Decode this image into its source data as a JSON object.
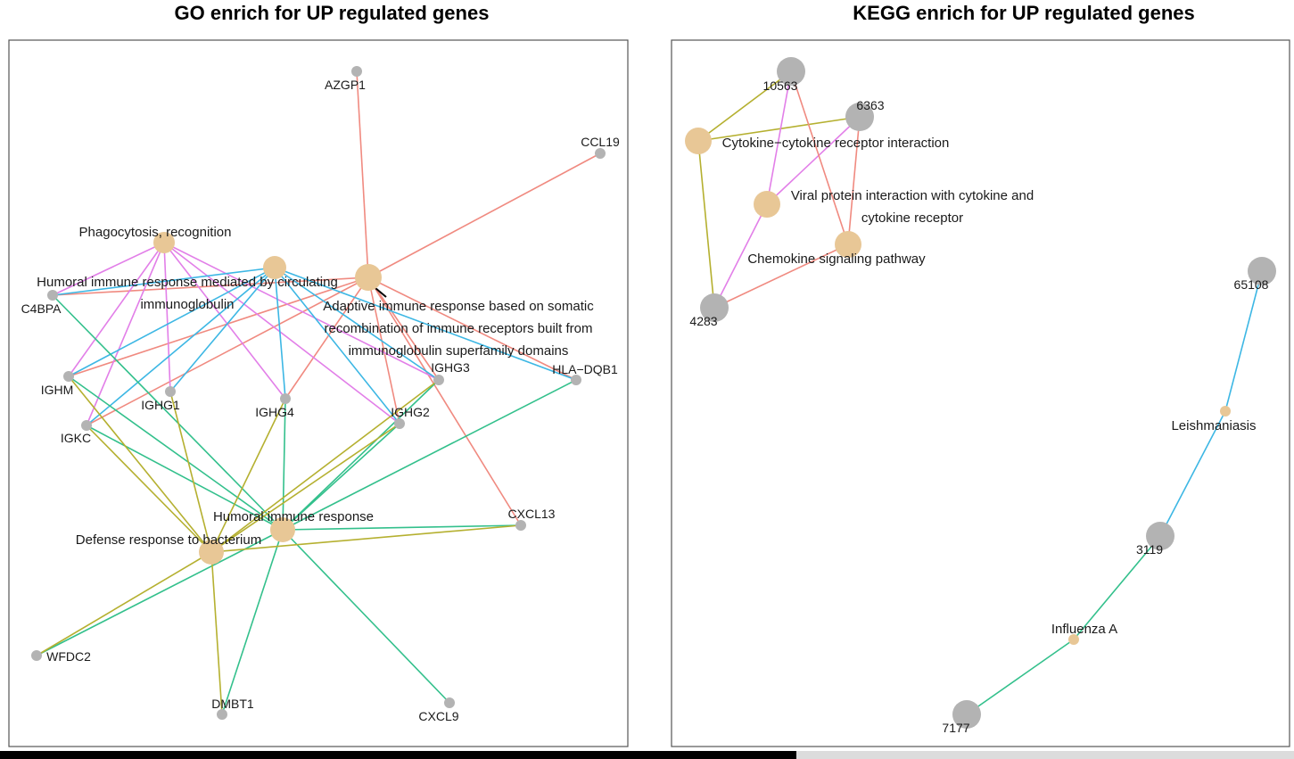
{
  "colors": {
    "term": "#e8c796",
    "gene": "#b3b3b3",
    "frame": "#555555"
  },
  "panels": [
    {
      "id": "go",
      "title": "GO enrich for UP regulated genes",
      "terms": [
        {
          "id": "phago",
          "lines": [
            "Phagocytosis, recognition"
          ]
        },
        {
          "id": "humcirc",
          "lines": [
            "Humoral immune response mediated by circulating",
            "immunoglobulin"
          ]
        },
        {
          "id": "adaptive",
          "lines": [
            "Adaptive immune response based on somatic",
            "recombination of immune receptors built from",
            "immunoglobulin superfamily domains"
          ]
        },
        {
          "id": "humoral",
          "lines": [
            "Humoral immune response"
          ]
        },
        {
          "id": "defense",
          "lines": [
            "Defense response to bacterium"
          ]
        }
      ],
      "genes": [
        "AZGP1",
        "CCL19",
        "C4BPA",
        "IGHG3",
        "HLA−DQB1",
        "IGHM",
        "IGHG1",
        "IGHG4",
        "IGHG2",
        "IGKC",
        "CXCL13",
        "WFDC2",
        "DMBT1",
        "CXCL9"
      ],
      "edges": [
        {
          "term": "adaptive",
          "color": "#f08a80",
          "genes": [
            "AZGP1",
            "CCL19",
            "C4BPA",
            "IGHG3",
            "HLA−DQB1",
            "IGHM",
            "IGHG4",
            "IGHG2",
            "IGKC",
            "CXCL13"
          ]
        },
        {
          "term": "phago",
          "color": "#e27fe8",
          "genes": [
            "C4BPA",
            "IGHM",
            "IGHG1",
            "IGHG4",
            "IGHG2",
            "IGHG3",
            "IGKC"
          ]
        },
        {
          "term": "humcirc",
          "color": "#3db7e4",
          "genes": [
            "C4BPA",
            "IGHM",
            "IGHG1",
            "IGHG4",
            "IGHG2",
            "IGHG3",
            "HLA−DQB1",
            "IGKC"
          ]
        },
        {
          "term": "humoral",
          "color": "#33c08c",
          "genes": [
            "C4BPA",
            "IGHM",
            "IGKC",
            "IGHG4",
            "IGHG2",
            "IGHG3",
            "HLA−DQB1",
            "CXCL13",
            "WFDC2",
            "DMBT1",
            "CXCL9"
          ]
        },
        {
          "term": "defense",
          "color": "#b5b030",
          "genes": [
            "IGHM",
            "IGKC",
            "IGHG1",
            "IGHG4",
            "IGHG2",
            "IGHG3",
            "CXCL13",
            "WFDC2",
            "DMBT1"
          ]
        }
      ]
    },
    {
      "id": "kegg",
      "title": "KEGG enrich for UP regulated genes",
      "terms": [
        {
          "id": "cytokine",
          "lines": [
            "Cytokine−cytokine receptor interaction"
          ]
        },
        {
          "id": "viral",
          "lines": [
            "Viral protein interaction with cytokine and",
            "cytokine receptor"
          ]
        },
        {
          "id": "chemokine",
          "lines": [
            "Chemokine signaling pathway"
          ]
        },
        {
          "id": "leish",
          "lines": [
            "Leishmaniasis"
          ]
        },
        {
          "id": "flu",
          "lines": [
            "Influenza A"
          ]
        }
      ],
      "genes": [
        "10563",
        "6363",
        "4283",
        "65108",
        "3119",
        "7177"
      ],
      "edges": [
        {
          "term": "cytokine",
          "color": "#b5b030",
          "genes": [
            "10563",
            "6363",
            "4283"
          ]
        },
        {
          "term": "viral",
          "color": "#e27fe8",
          "genes": [
            "10563",
            "6363",
            "4283"
          ]
        },
        {
          "term": "chemokine",
          "color": "#f08a80",
          "genes": [
            "10563",
            "6363",
            "4283"
          ]
        },
        {
          "term": "leish",
          "color": "#3db7e4",
          "genes": [
            "65108",
            "3119"
          ]
        },
        {
          "term": "flu",
          "color": "#33c08c",
          "genes": [
            "3119",
            "7177"
          ]
        }
      ]
    }
  ]
}
